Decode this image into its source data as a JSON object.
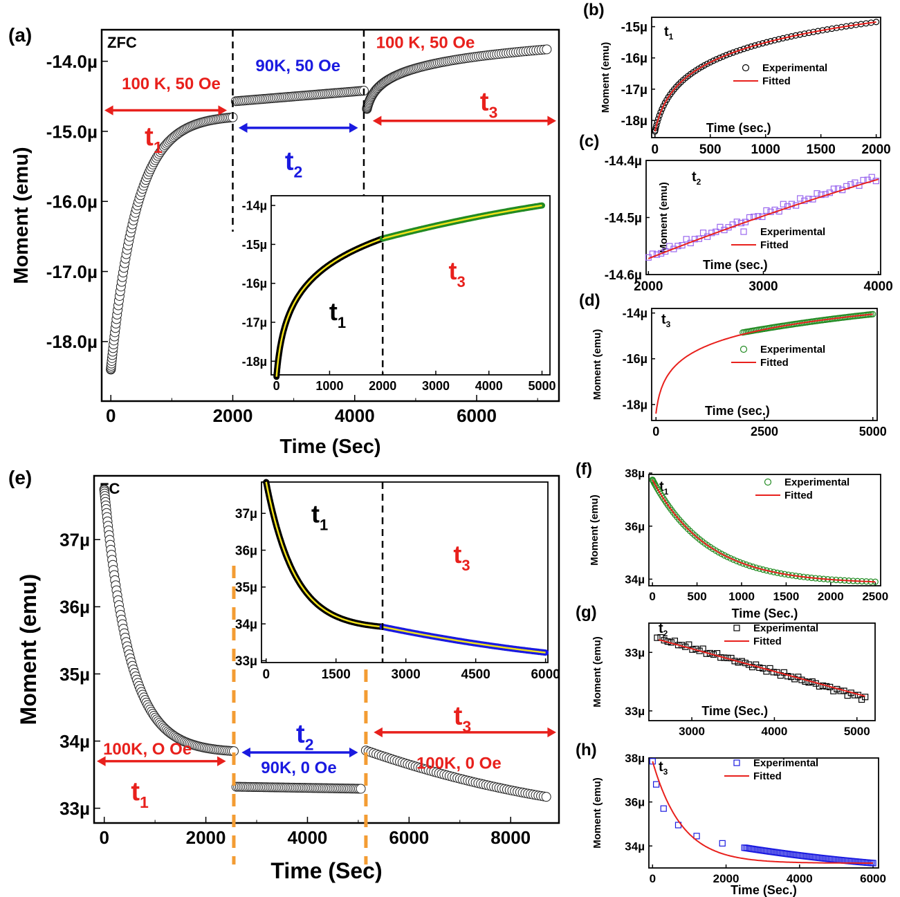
{
  "colors": {
    "red": "#e8201c",
    "blue": "#1a1ae0",
    "green": "#228b22",
    "yellow": "#f2e21a",
    "orange": "#f39c33",
    "purple": "#9966ee",
    "black": "#000000"
  },
  "chart_data": [
    {
      "id": "a",
      "panel": "(a)",
      "type": "scatter",
      "corner": "ZFC",
      "xlabel": "Time (Sec)",
      "ylabel": "Moment (emu)",
      "xlim": [
        -150,
        7350
      ],
      "ylim": [
        -18.85,
        -13.55
      ],
      "xticks": [
        0,
        2000,
        4000,
        6000
      ],
      "xticklabels": [
        "0",
        "2000",
        "4000",
        "6000"
      ],
      "yticks": [
        -18,
        -17,
        -16,
        -15,
        -14
      ],
      "yticklabels": [
        "-18.0µ",
        "-17.0µ",
        "-16.0µ",
        "-15.0µ",
        "-14.0µ"
      ],
      "segments": [
        {
          "kind": "decay",
          "x0": 0,
          "x1": 2000,
          "y0": -18.4,
          "y1": -14.8,
          "tau": 420
        },
        {
          "kind": "linear",
          "x0": 2050,
          "x1": 4150,
          "y0": -14.57,
          "y1": -14.42
        },
        {
          "kind": "log",
          "x0": 4200,
          "x1": 7150,
          "y0": -14.68,
          "y1": -13.83
        }
      ],
      "vlines": [
        2000,
        4150
      ],
      "annotations": [
        {
          "text": "100 K, 50 Oe",
          "x": 1800,
          "y": -14.4,
          "color": "red",
          "anchor": "end"
        },
        {
          "text": "90K, 50 Oe",
          "x": 3070,
          "y": -14.14,
          "color": "blue",
          "anchor": "middle"
        },
        {
          "text": "100 K, 50 Oe",
          "x": 4350,
          "y": -13.81,
          "color": "red",
          "anchor": "start"
        }
      ],
      "arrows": [
        {
          "x0": -150,
          "x1": 1950,
          "y": -14.7,
          "color": "red"
        },
        {
          "x0": 2050,
          "x1": 4100,
          "y": -14.95,
          "color": "blue"
        },
        {
          "x0": 4250,
          "x1": 7350,
          "y": -14.85,
          "color": "red"
        }
      ],
      "tlabels": [
        {
          "base": "t",
          "sub": "1",
          "x": 700,
          "y": -15.2,
          "color": "red"
        },
        {
          "base": "t",
          "sub": "2",
          "x": 3000,
          "y": -15.55,
          "color": "blue"
        },
        {
          "base": "t",
          "sub": "3",
          "x": 6200,
          "y": -14.7,
          "color": "red"
        }
      ],
      "inset": {
        "xlim": [
          -100,
          5150
        ],
        "ylim": [
          -18.35,
          -13.75
        ],
        "xticks": [
          0,
          1000,
          2000,
          3000,
          4000,
          5000
        ],
        "xticklabels": [
          "0",
          "1000",
          "2000",
          "3000",
          "4000",
          "5000"
        ],
        "yticks": [
          -18,
          -17,
          -16,
          -15,
          -14
        ],
        "yticklabels": [
          "-18µ",
          "-17µ",
          "-16µ",
          "-15µ",
          "-14µ"
        ],
        "curves": [
          {
            "kind": "log",
            "x0": 0,
            "x1": 2000,
            "y0": -18.4,
            "y1": -14.85,
            "color": "black",
            "fit": "yellow",
            "tau": 60
          },
          {
            "kind": "linear",
            "x0": 2000,
            "x1": 5000,
            "y0": -14.85,
            "y1": -14.0,
            "color": "green",
            "fit": "yellow",
            "curv": 0.25
          }
        ],
        "vline": 2000,
        "tlabels": [
          {
            "base": "t",
            "sub": "1",
            "x": 1150,
            "y": -16.95,
            "color": "black"
          },
          {
            "base": "t",
            "sub": "3",
            "x": 3400,
            "y": -15.9,
            "color": "red"
          }
        ]
      }
    },
    {
      "id": "b",
      "panel": "(b)",
      "type": "scatter",
      "tag": "t1",
      "xlabel": "Time (sec.)",
      "ylabel": "Moment (emu)",
      "xlim": [
        -30,
        2040
      ],
      "ylim": [
        -18.55,
        -14.7
      ],
      "xticks": [
        0,
        500,
        1000,
        1500,
        2000
      ],
      "xticklabels": [
        "0",
        "500",
        "1000",
        "1500",
        "2000"
      ],
      "yticks": [
        -18,
        -17,
        -16,
        -15
      ],
      "yticklabels": [
        "-18µ",
        "-17µ",
        "-16µ",
        "-15µ"
      ],
      "experimental": {
        "kind": "log",
        "x0": 0,
        "x1": 2000,
        "y0": -18.35,
        "y1": -14.85,
        "tau": 60,
        "marker": "circle",
        "color": "black",
        "n": 70
      },
      "fit": {
        "kind": "log",
        "x0": 0,
        "x1": 2000,
        "y0": -18.35,
        "y1": -14.85,
        "tau": 60,
        "color": "red"
      },
      "legend": [
        "Experimental",
        "Fitted"
      ]
    },
    {
      "id": "c",
      "panel": "(c)",
      "type": "scatter",
      "tag": "t2",
      "xlabel": "Time (sec.)",
      "ylabel": "Moment (emu)",
      "xlim": [
        1980,
        4020
      ],
      "ylim": [
        -14.6,
        -14.4
      ],
      "xticks": [
        2000,
        3000,
        4000
      ],
      "xticklabels": [
        "2000",
        "3000",
        "4000"
      ],
      "yticks": [
        -14.6,
        -14.5,
        -14.4
      ],
      "yticklabels": [
        "-14.6µ",
        "-14.5µ",
        "-14.4µ"
      ],
      "experimental": {
        "kind": "linear",
        "x0": 2000,
        "x1": 3980,
        "y0": -14.57,
        "y1": -14.43,
        "curv": 0.15,
        "marker": "square",
        "color": "purple",
        "n": 55,
        "noise": 0.006
      },
      "fit": {
        "kind": "linear",
        "x0": 2000,
        "x1": 4000,
        "y0": -14.572,
        "y1": -14.433,
        "curv": 0.15,
        "color": "red"
      },
      "legend": [
        "Experimental",
        "Fitted"
      ]
    },
    {
      "id": "d",
      "panel": "(d)",
      "type": "scatter",
      "tag": "t3",
      "xlabel": "Time (sec.)",
      "ylabel": "Moment (emu)",
      "xlim": [
        -100,
        5100
      ],
      "ylim": [
        -18.7,
        -13.8
      ],
      "xticks": [
        0,
        2500,
        5000
      ],
      "xticklabels": [
        "0",
        "2500",
        "5000"
      ],
      "yticks": [
        -18,
        -16,
        -14
      ],
      "yticklabels": [
        "-18µ",
        "-16µ",
        "-14µ"
      ],
      "experimental": {
        "kind": "linear",
        "x0": 2000,
        "x1": 5000,
        "y0": -14.85,
        "y1": -14.05,
        "curv": 0.25,
        "marker": "circle",
        "color": "green",
        "n": 80
      },
      "fit": {
        "kind": "log",
        "x0": 0,
        "x1": 5000,
        "y0": -18.4,
        "y1": -14.05,
        "tau": 60,
        "color": "red"
      },
      "legend": [
        "Experimental",
        "Fitted"
      ]
    },
    {
      "id": "e",
      "panel": "(e)",
      "type": "scatter",
      "corner": "FC",
      "xlabel": "Time (Sec)",
      "ylabel": "Moment (emu)",
      "xlim": [
        -200,
        8950
      ],
      "ylim": [
        32.78,
        37.95
      ],
      "xticks": [
        0,
        2000,
        4000,
        6000,
        8000
      ],
      "xticklabels": [
        "0",
        "2000",
        "4000",
        "6000",
        "8000"
      ],
      "yticks": [
        33,
        34,
        35,
        36,
        37
      ],
      "yticklabels": [
        "33µ",
        "34µ",
        "35µ",
        "36µ",
        "37µ"
      ],
      "segments": [
        {
          "kind": "decay",
          "x0": 0,
          "x1": 2550,
          "y0": 37.75,
          "y1": 33.85,
          "tau": 500
        },
        {
          "kind": "linear",
          "x0": 2600,
          "x1": 5050,
          "y0": 33.32,
          "y1": 33.29
        },
        {
          "kind": "linear",
          "x0": 5150,
          "x1": 8700,
          "y0": 33.86,
          "y1": 33.17,
          "curv": 0.35
        }
      ],
      "vlines": [
        2550,
        5150
      ],
      "annotations": [
        {
          "text": "100K, O Oe",
          "x": 850,
          "y": 33.8,
          "color": "red",
          "anchor": "middle"
        },
        {
          "text": "90K, 0 Oe",
          "x": 3830,
          "y": 33.52,
          "color": "blue",
          "anchor": "middle"
        },
        {
          "text": "100K, 0 Oe",
          "x": 6980,
          "y": 33.59,
          "color": "red",
          "anchor": "middle"
        }
      ],
      "arrows": [
        {
          "x0": -200,
          "x1": 2450,
          "y": 33.7,
          "color": "red"
        },
        {
          "x0": 2650,
          "x1": 5050,
          "y": 33.83,
          "color": "blue"
        },
        {
          "x0": 5250,
          "x1": 8950,
          "y": 34.13,
          "color": "red"
        }
      ],
      "tlabels": [
        {
          "base": "t",
          "sub": "1",
          "x": 700,
          "y": 33.12,
          "color": "red"
        },
        {
          "base": "t",
          "sub": "2",
          "x": 3950,
          "y": 33.98,
          "color": "blue"
        },
        {
          "base": "t",
          "sub": "3",
          "x": 7050,
          "y": 34.25,
          "color": "red"
        }
      ],
      "inset": {
        "xlim": [
          -100,
          6050
        ],
        "ylim": [
          32.95,
          37.85
        ],
        "xticks": [
          0,
          1500,
          3000,
          4500,
          6000
        ],
        "xticklabels": [
          "0",
          "1500",
          "3000",
          "4500",
          "6000"
        ],
        "yticks": [
          33,
          34,
          35,
          36,
          37
        ],
        "yticklabels": [
          "33µ",
          "34µ",
          "35µ",
          "36µ",
          "37µ"
        ],
        "curves": [
          {
            "kind": "decay",
            "x0": 0,
            "x1": 2500,
            "y0": 37.85,
            "y1": 33.92,
            "tau": 620,
            "color": "black",
            "fit": "yellow"
          },
          {
            "kind": "linear",
            "x0": 2500,
            "x1": 6000,
            "y0": 33.92,
            "y1": 33.22,
            "curv": 0.3,
            "color": "blue",
            "fit": "yellow"
          }
        ],
        "vline": 2500,
        "tlabels": [
          {
            "base": "t",
            "sub": "1",
            "x": 1150,
            "y": 36.75,
            "color": "black"
          },
          {
            "base": "t",
            "sub": "3",
            "x": 4200,
            "y": 35.65,
            "color": "red"
          }
        ]
      }
    },
    {
      "id": "f",
      "panel": "(f)",
      "type": "scatter",
      "tag": "t1",
      "xlabel": "Time (Sec.)",
      "ylabel": "Moment (emu)",
      "xlim": [
        -40,
        2560
      ],
      "ylim": [
        33.75,
        37.95
      ],
      "xticks": [
        0,
        500,
        1000,
        1500,
        2000,
        2500
      ],
      "xticklabels": [
        "0",
        "500",
        "1000",
        "1500",
        "2000",
        "2500"
      ],
      "yticks": [
        34,
        36,
        38
      ],
      "yticklabels": [
        "34µ",
        "36µ",
        "38µ"
      ],
      "experimental": {
        "kind": "decay",
        "x0": 0,
        "x1": 2500,
        "y0": 37.75,
        "y1": 33.9,
        "tau": 620,
        "marker": "circle",
        "color": "green",
        "n": 80
      },
      "fit": {
        "kind": "decay",
        "x0": 0,
        "x1": 2500,
        "y0": 37.75,
        "y1": 33.9,
        "tau": 620,
        "color": "red"
      },
      "legend": [
        "Experimental",
        "Fitted"
      ]
    },
    {
      "id": "g",
      "panel": "(g)",
      "type": "scatter",
      "tag": "t2",
      "xlabel": "Time (Sec.)",
      "ylabel": "Moment (emu)",
      "xlim": [
        2480,
        5220
      ],
      "ylim": [
        33.26,
        33.36
      ],
      "xticks": [
        3000,
        4000,
        5000
      ],
      "xticklabels": [
        "3000",
        "4000",
        "5000"
      ],
      "yticks": [
        33.27,
        33.33
      ],
      "yticklabels": [
        "33µ",
        "33µ"
      ],
      "experimental": {
        "kind": "linear",
        "x0": 2580,
        "x1": 5100,
        "y0": 33.345,
        "y1": 33.283,
        "marker": "square",
        "color": "black",
        "n": 60,
        "noise": 0.0025
      },
      "fit": {
        "kind": "linear",
        "x0": 2600,
        "x1": 5100,
        "y0": 33.343,
        "y1": 33.285,
        "color": "red"
      },
      "legend": [
        "Experimental",
        "Fitted"
      ]
    },
    {
      "id": "h",
      "panel": "(h)",
      "type": "scatter",
      "tag": "t3",
      "xlabel": "Time (Sec.)",
      "ylabel": "Moment (emu)",
      "xlim": [
        -100,
        6150
      ],
      "ylim": [
        33.0,
        38.0
      ],
      "xticks": [
        0,
        2000,
        4000,
        6000
      ],
      "xticklabels": [
        "0",
        "2000",
        "4000",
        "6000"
      ],
      "yticks": [
        34,
        36,
        38
      ],
      "yticklabels": [
        "34µ",
        "36µ",
        "38µ"
      ],
      "experimental": {
        "kind": "mixed",
        "color": "blue",
        "marker": "square",
        "sparse": [
          [
            0,
            37.85
          ],
          [
            100,
            36.8
          ],
          [
            300,
            35.7
          ],
          [
            700,
            34.95
          ],
          [
            1200,
            34.45
          ],
          [
            1900,
            34.12
          ]
        ],
        "dense": {
          "kind": "linear",
          "x0": 2500,
          "x1": 6000,
          "y0": 33.92,
          "y1": 33.22,
          "curv": 0.3,
          "n": 90
        }
      },
      "fit": {
        "kind": "decay",
        "x0": 0,
        "x1": 6000,
        "y0": 37.85,
        "y1": 33.22,
        "tau": 800,
        "color": "red"
      },
      "legend": [
        "Experimental",
        "Fitted"
      ]
    }
  ]
}
